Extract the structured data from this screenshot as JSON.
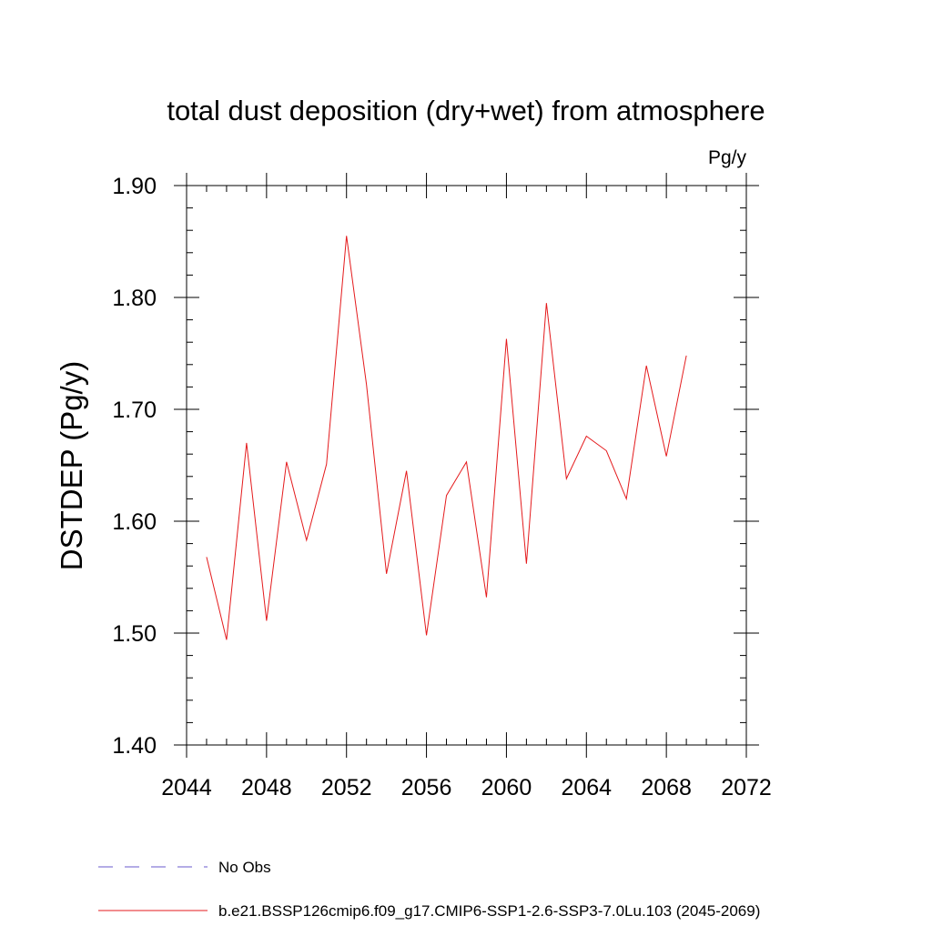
{
  "chart_data": {
    "type": "line",
    "title": "total dust deposition (dry+wet) from atmosphere",
    "units_label": "Pg/y",
    "ylabel": "DSTDEP  (Pg/y)",
    "xlabel": "",
    "xlim": [
      2044,
      2072
    ],
    "ylim": [
      1.4,
      1.9
    ],
    "xticks": [
      "2044",
      "2048",
      "2052",
      "2056",
      "2060",
      "2064",
      "2068",
      "2072"
    ],
    "xtick_values": [
      2044,
      2048,
      2052,
      2056,
      2060,
      2064,
      2068,
      2072
    ],
    "yticks": [
      "1.40",
      "1.50",
      "1.60",
      "1.70",
      "1.80",
      "1.90"
    ],
    "ytick_values": [
      1.4,
      1.5,
      1.6,
      1.7,
      1.8,
      1.9
    ],
    "grid": false,
    "legend_position": "bottom-left",
    "series": [
      {
        "name": "b.e21.BSSP126cmip6.f09_g17.CMIP6-SSP1-2.6-SSP3-7.0Lu.103 (2045-2069)",
        "color": "#e41a1c",
        "x": [
          2045,
          2046,
          2047,
          2048,
          2049,
          2050,
          2051,
          2052,
          2053,
          2054,
          2055,
          2056,
          2057,
          2058,
          2059,
          2060,
          2061,
          2062,
          2063,
          2064,
          2065,
          2066,
          2067,
          2068,
          2069
        ],
        "y": [
          1.568,
          1.494,
          1.67,
          1.511,
          1.653,
          1.583,
          1.651,
          1.855,
          1.722,
          1.553,
          1.645,
          1.498,
          1.623,
          1.653,
          1.532,
          1.763,
          1.562,
          1.795,
          1.638,
          1.676,
          1.663,
          1.62,
          1.739,
          1.658,
          1.748
        ]
      }
    ],
    "legend": [
      {
        "label": "No Obs",
        "color": "#6a5acd",
        "dash": "dashed"
      },
      {
        "label": "b.e21.BSSP126cmip6.f09_g17.CMIP6-SSP1-2.6-SSP3-7.0Lu.103 (2045-2069)",
        "color": "#e41a1c",
        "dash": "solid"
      }
    ]
  }
}
